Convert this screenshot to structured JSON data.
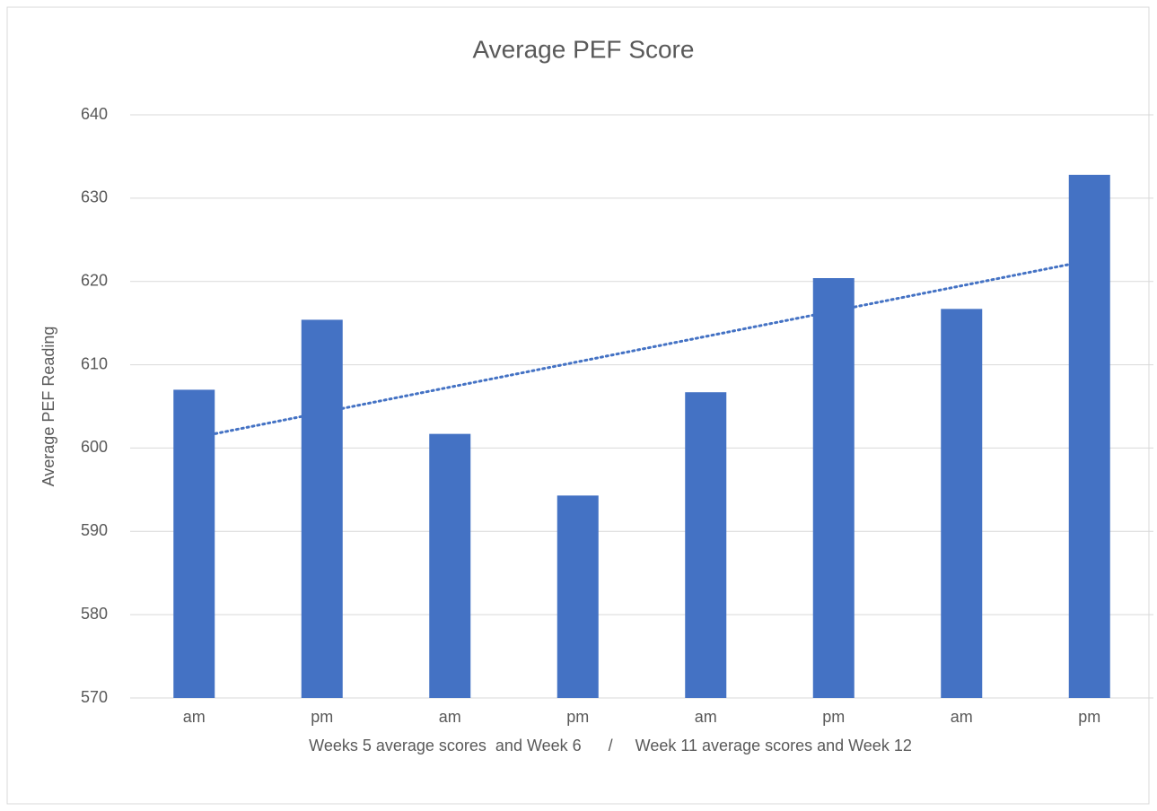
{
  "chart_data": {
    "type": "bar",
    "title": "Average PEF Score",
    "x_label": "Weeks 5 average scores  and Week 6      /     Week 11 average scores and Week 12",
    "y_label": "Average PEF Reading",
    "categories": [
      "am",
      "pm",
      "am",
      "pm",
      "am",
      "pm",
      "am",
      "pm"
    ],
    "values": [
      607.0,
      615.4,
      601.7,
      594.3,
      606.7,
      620.4,
      616.7,
      632.8
    ],
    "color": "#4472c4",
    "trendline": "linear",
    "ylim": [
      570,
      640
    ],
    "yticks": [
      570,
      580,
      590,
      600,
      610,
      620,
      630,
      640
    ],
    "grid": true
  }
}
